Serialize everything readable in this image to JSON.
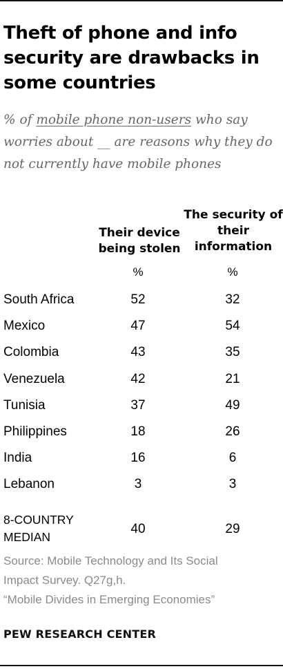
{
  "chart_data": {
    "type": "table",
    "title": "Theft of phone and info security are drawbacks in some countries",
    "subtitle_before": "% of ",
    "subtitle_link": "mobile phone non-users",
    "subtitle_after": " who say worries about __ are reasons why they do not currently have mobile phones",
    "columns": [
      "Their device being stolen",
      "The security of their information"
    ],
    "units": [
      "%",
      "%"
    ],
    "rows": [
      {
        "label": "South Africa",
        "values": [
          52,
          32
        ]
      },
      {
        "label": "Mexico",
        "values": [
          47,
          54
        ]
      },
      {
        "label": "Colombia",
        "values": [
          43,
          35
        ]
      },
      {
        "label": "Venezuela",
        "values": [
          42,
          21
        ]
      },
      {
        "label": "Tunisia",
        "values": [
          37,
          49
        ]
      },
      {
        "label": "Philippines",
        "values": [
          18,
          26
        ]
      },
      {
        "label": "India",
        "values": [
          16,
          6
        ]
      },
      {
        "label": "Lebanon",
        "values": [
          3,
          3
        ]
      }
    ],
    "median": {
      "label": "8-COUNTRY MEDIAN",
      "values": [
        40,
        29
      ]
    }
  },
  "source_lines": [
    "Source: Mobile Technology and Its Social",
    "Impact Survey. Q27g,h.",
    "“Mobile Divides in Emerging Economies”"
  ],
  "brand": "PEW RESEARCH CENTER"
}
